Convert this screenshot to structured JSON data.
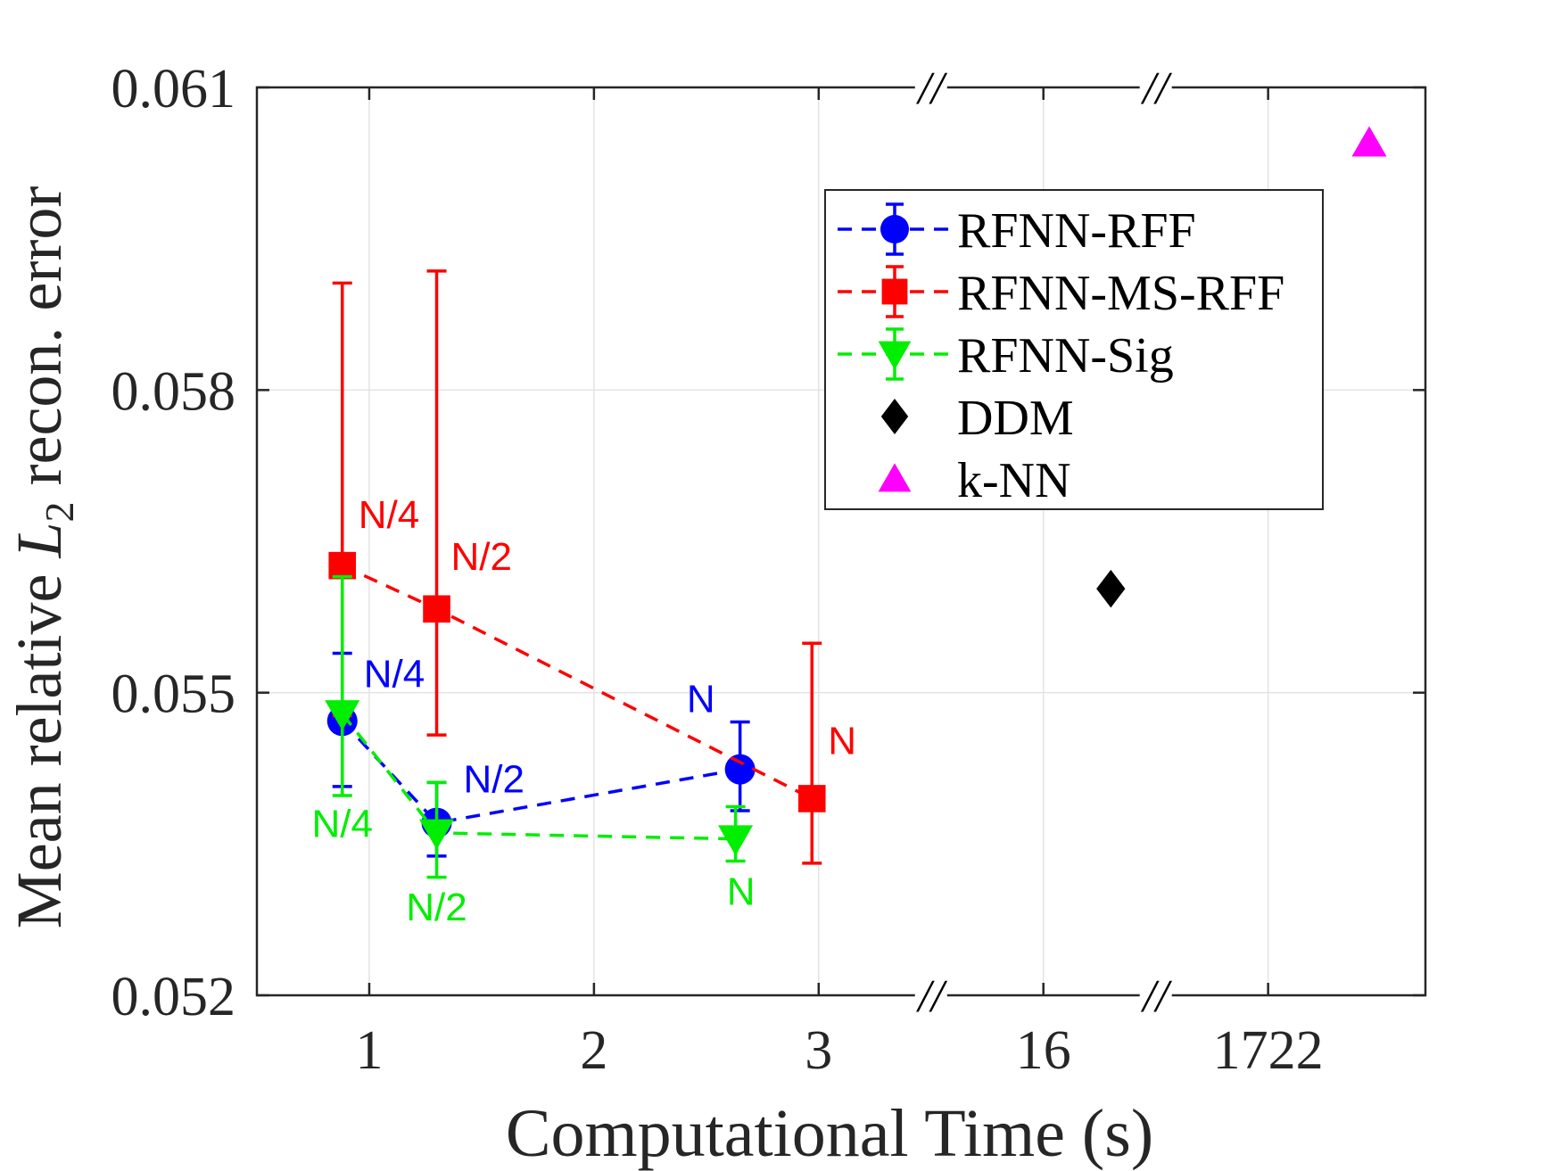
{
  "chart_data": {
    "type": "scatter",
    "title": "",
    "xlabel": "Computational Time (s)",
    "ylabel_parts": {
      "pre": "Mean relative",
      "var": "L",
      "sub": "2",
      "post": "recon. error"
    },
    "ylim": [
      0.052,
      0.061
    ],
    "yticks": [
      "0.052",
      "0.055",
      "0.058",
      "0.061"
    ],
    "ytick_values": [
      0.052,
      0.055,
      0.058,
      0.061
    ],
    "xticks": [
      "1",
      "2",
      "3",
      "16",
      "1722"
    ],
    "xtick_positions": [
      1,
      2,
      3,
      4,
      5
    ],
    "xlim": [
      0.5,
      5.7
    ],
    "axis_breaks": [
      3.5,
      4.5
    ],
    "axis_break_symbol": "//",
    "grid": true,
    "legend_position": "top-right",
    "series": [
      {
        "name": "RFNN-RFF",
        "color": "#0000ff",
        "marker": "circle",
        "line": "dashed",
        "points": [
          {
            "x": 0.88,
            "y": 0.05472,
            "err_low": 0.05407,
            "err_high": 0.05539,
            "label": "N/4"
          },
          {
            "x": 1.3,
            "y": 0.05371,
            "err_low": 0.05338,
            "err_high": 0.05411,
            "label": "N/2"
          },
          {
            "x": 2.65,
            "y": 0.05424,
            "err_low": 0.05383,
            "err_high": 0.05471,
            "label": "N"
          }
        ]
      },
      {
        "name": "RFNN-MS-RFF",
        "color": "#ff0000",
        "marker": "square",
        "line": "dashed",
        "points": [
          {
            "x": 0.88,
            "y": 0.05626,
            "err_low": 0.05477,
            "err_high": 0.05906,
            "label": "N/4"
          },
          {
            "x": 1.3,
            "y": 0.05583,
            "err_low": 0.05458,
            "err_high": 0.05918,
            "label": "N/2"
          },
          {
            "x": 2.97,
            "y": 0.05395,
            "err_low": 0.05331,
            "err_high": 0.05549,
            "label": "N"
          }
        ]
      },
      {
        "name": "RFNN-Sig",
        "color": "#00ee00",
        "marker": "triangle-down",
        "line": "dashed",
        "points": [
          {
            "x": 0.88,
            "y": 0.05479,
            "err_low": 0.05398,
            "err_high": 0.05615,
            "label": "N/4"
          },
          {
            "x": 1.3,
            "y": 0.05361,
            "err_low": 0.05317,
            "err_high": 0.05411,
            "label": "N/2"
          },
          {
            "x": 2.63,
            "y": 0.05355,
            "err_low": 0.05333,
            "err_high": 0.05387,
            "label": "N"
          }
        ]
      },
      {
        "name": "DDM",
        "color": "#000000",
        "marker": "diamond",
        "line": "none",
        "points": [
          {
            "x": 4.3,
            "y": 0.05603
          }
        ]
      },
      {
        "name": "k-NN",
        "color": "#ff00ff",
        "marker": "triangle-up",
        "line": "none",
        "points": [
          {
            "x": 5.45,
            "y": 0.06045
          }
        ]
      }
    ]
  }
}
